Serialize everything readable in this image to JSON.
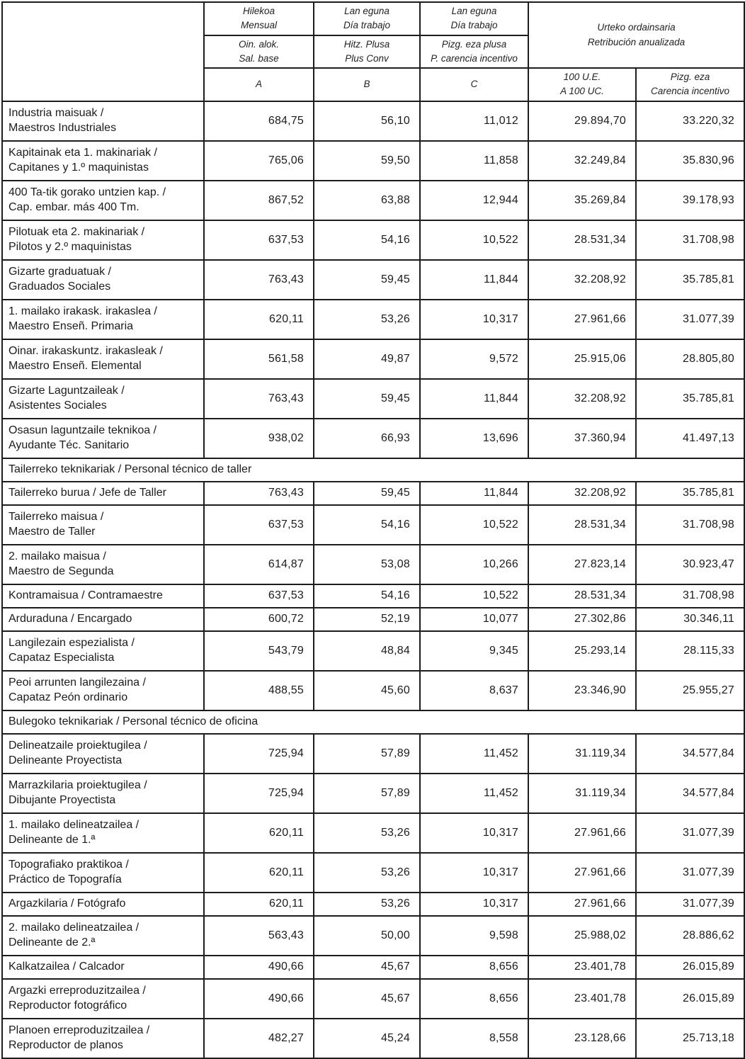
{
  "table": {
    "header": {
      "monthly": {
        "l1": "Hilekoa",
        "l2": "Mensual"
      },
      "workday_b": {
        "l1": "Lan eguna",
        "l2": "Día trabajo"
      },
      "workday_c": {
        "l1": "Lan eguna",
        "l2": "Día trabajo"
      },
      "annual": {
        "l1": "Urteko ordainsaria",
        "l2": "Retribución anualizada"
      },
      "sub_base": {
        "l1": "Oin. alok.",
        "l2": "Sal. base"
      },
      "sub_plus": {
        "l1": "Hitz. Plusa",
        "l2": "Plus Conv"
      },
      "sub_incentive": {
        "l1": "Pizg. eza plusa",
        "l2": "P. carencia incentivo"
      },
      "col_a": "A",
      "col_b": "B",
      "col_c": "C",
      "annual_100": {
        "l1": "100 U.E.",
        "l2": "A 100 UC."
      },
      "annual_incentive": {
        "l1": "Pizg. eza",
        "l2": "Carencia incentivo"
      }
    },
    "column_keys": [
      "salary-base",
      "plus-conv",
      "carencia-plus",
      "annual-100uc",
      "annual-carencia"
    ],
    "rows": [
      {
        "label1": "Industria maisuak /",
        "label2": "Maestros Industriales",
        "values": [
          "684,75",
          "56,10",
          "11,012",
          "29.894,70",
          "33.220,32"
        ]
      },
      {
        "label1": "Kapitainak eta 1. makinariak /",
        "label2": "Capitanes y 1.º maquinistas",
        "values": [
          "765,06",
          "59,50",
          "11,858",
          "32.249,84",
          "35.830,96"
        ]
      },
      {
        "label1": "400 Ta-tik gorako untzien kap. /",
        "label2": "Cap. embar. más 400 Tm.",
        "values": [
          "867,52",
          "63,88",
          "12,944",
          "35.269,84",
          "39.178,93"
        ]
      },
      {
        "label1": "Pilotuak eta 2. makinariak /",
        "label2": "Pilotos y 2.º maquinistas",
        "values": [
          "637,53",
          "54,16",
          "10,522",
          "28.531,34",
          "31.708,98"
        ]
      },
      {
        "label1": "Gizarte graduatuak /",
        "label2": "Graduados Sociales",
        "values": [
          "763,43",
          "59,45",
          "11,844",
          "32.208,92",
          "35.785,81"
        ]
      },
      {
        "label1": "1. mailako irakask. irakaslea /",
        "label2": "Maestro Enseñ. Primaria",
        "values": [
          "620,11",
          "53,26",
          "10,317",
          "27.961,66",
          "31.077,39"
        ]
      },
      {
        "label1": "Oinar. irakaskuntz. irakasleak /",
        "label2": "Maestro Enseñ. Elemental",
        "values": [
          "561,58",
          "49,87",
          "9,572",
          "25.915,06",
          "28.805,80"
        ]
      },
      {
        "label1": "Gizarte Laguntzaileak /",
        "label2": "Asistentes Sociales",
        "values": [
          "763,43",
          "59,45",
          "11,844",
          "32.208,92",
          "35.785,81"
        ]
      },
      {
        "label1": "Osasun laguntzaile teknikoa /",
        "label2": "Ayudante Téc. Sanitario",
        "values": [
          "938,02",
          "66,93",
          "13,696",
          "37.360,94",
          "41.497,13"
        ]
      },
      {
        "section": "Tailerreko teknikariak / Personal técnico de taller"
      },
      {
        "label1": "Tailerreko burua / Jefe de Taller",
        "label2": "",
        "values": [
          "763,43",
          "59,45",
          "11,844",
          "32.208,92",
          "35.785,81"
        ]
      },
      {
        "label1": "Tailerreko maisua /",
        "label2": "Maestro de Taller",
        "values": [
          "637,53",
          "54,16",
          "10,522",
          "28.531,34",
          "31.708,98"
        ]
      },
      {
        "label1": "2. mailako maisua /",
        "label2": "Maestro de Segunda",
        "values": [
          "614,87",
          "53,08",
          "10,266",
          "27.823,14",
          "30.923,47"
        ]
      },
      {
        "label1": "Kontramaisua / Contramaestre",
        "label2": "",
        "values": [
          "637,53",
          "54,16",
          "10,522",
          "28.531,34",
          "31.708,98"
        ]
      },
      {
        "label1": "Arduraduna / Encargado",
        "label2": "",
        "values": [
          "600,72",
          "52,19",
          "10,077",
          "27.302,86",
          "30.346,11"
        ]
      },
      {
        "label1": "Langilezain espezialista /",
        "label2": "Capataz Especialista",
        "values": [
          "543,79",
          "48,84",
          "9,345",
          "25.293,14",
          "28.115,33"
        ]
      },
      {
        "label1": "Peoi arrunten langilezaina /",
        "label2": "Capataz Peón ordinario",
        "values": [
          "488,55",
          "45,60",
          "8,637",
          "23.346,90",
          "25.955,27"
        ]
      },
      {
        "section": "Bulegoko teknikariak / Personal técnico de oficina"
      },
      {
        "label1": "Delineatzaile proiektugilea /",
        "label2": "Delineante Proyectista",
        "values": [
          "725,94",
          "57,89",
          "11,452",
          "31.119,34",
          "34.577,84"
        ]
      },
      {
        "label1": "Marrazkilaria proiektugilea /",
        "label2": "Dibujante Proyectista",
        "values": [
          "725,94",
          "57,89",
          "11,452",
          "31.119,34",
          "34.577,84"
        ]
      },
      {
        "label1": "1. mailako delineatzailea /",
        "label2": "Delineante de 1.ª",
        "values": [
          "620,11",
          "53,26",
          "10,317",
          "27.961,66",
          "31.077,39"
        ]
      },
      {
        "label1": "Topografiako praktikoa /",
        "label2": "Práctico de Topografía",
        "values": [
          "620,11",
          "53,26",
          "10,317",
          "27.961,66",
          "31.077,39"
        ]
      },
      {
        "label1": "Argazkilaria / Fotógrafo",
        "label2": "",
        "values": [
          "620,11",
          "53,26",
          "10,317",
          "27.961,66",
          "31.077,39"
        ]
      },
      {
        "label1": "2. mailako delineatzailea /",
        "label2": "Delineante de 2.ª",
        "values": [
          "563,43",
          "50,00",
          "9,598",
          "25.988,02",
          "28.886,62"
        ]
      },
      {
        "label1": "Kalkatzailea / Calcador",
        "label2": "",
        "values": [
          "490,66",
          "45,67",
          "8,656",
          "23.401,78",
          "26.015,89"
        ]
      },
      {
        "label1": "Argazki erreproduzitzailea /",
        "label2": "Reproductor fotográfico",
        "values": [
          "490,66",
          "45,67",
          "8,656",
          "23.401,78",
          "26.015,89"
        ]
      },
      {
        "label1": "Planoen erreproduzitzailea /",
        "label2": "Reproductor de planos",
        "values": [
          "482,27",
          "45,24",
          "8,558",
          "23.128,66",
          "25.713,18"
        ]
      }
    ]
  }
}
